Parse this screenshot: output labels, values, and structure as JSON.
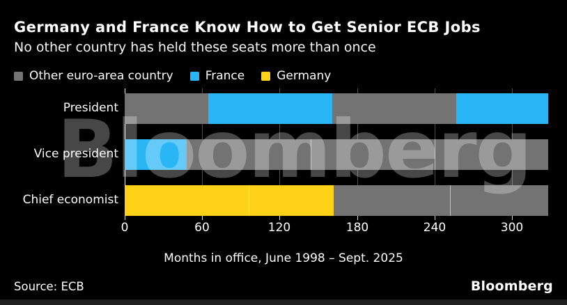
{
  "header": {
    "title": "Germany and France Know How to Get Senior ECB Jobs",
    "subtitle": "No other country has held these seats more than once"
  },
  "legend": {
    "items": [
      {
        "label": "Other euro-area country",
        "group": "Other euro-area country"
      },
      {
        "label": "France",
        "group": "France"
      },
      {
        "label": "Germany",
        "group": "Germany"
      }
    ]
  },
  "chart_data": {
    "type": "bar",
    "orientation": "horizontal",
    "stacked": true,
    "title": "Germany and France Know How to Get Senior ECB Jobs",
    "subtitle": "No other country has held these seats more than once",
    "xlabel": "Months in office, June 1998 – Sept. 2025",
    "unit": "months",
    "xlim": [
      0,
      328
    ],
    "xticks": [
      0,
      60,
      120,
      180,
      240,
      300
    ],
    "xtick_labels": [
      "0",
      "60",
      "120",
      "180",
      "240",
      "300"
    ],
    "grid": "vertical-ticks-between-bars",
    "legend_position": "top",
    "categories": [
      "President",
      "Vice president",
      "Chief economist"
    ],
    "group_colors": {
      "Other euro-area country": "#737373",
      "France": "#2ab6f5",
      "Germany": "#ffd117"
    },
    "rows": [
      {
        "label": "President",
        "segments": [
          {
            "group": "Other euro-area country",
            "months": 65
          },
          {
            "group": "France",
            "months": 96
          },
          {
            "group": "Other euro-area country",
            "months": 96
          },
          {
            "group": "France",
            "months": 71
          }
        ]
      },
      {
        "label": "Vice president",
        "segments": [
          {
            "group": "France",
            "months": 48
          },
          {
            "group": "Other euro-area country",
            "months": 96
          },
          {
            "group": "Other euro-area country",
            "months": 96
          },
          {
            "group": "Other euro-area country",
            "months": 88
          }
        ]
      },
      {
        "label": "Chief economist",
        "segments": [
          {
            "group": "Germany",
            "months": 96
          },
          {
            "group": "Germany",
            "months": 66
          },
          {
            "group": "Other euro-area country",
            "months": 90
          },
          {
            "group": "Other euro-area country",
            "months": 76
          }
        ]
      }
    ]
  },
  "caption": "Months in office, June 1998 – Sept. 2025",
  "watermark": "Bloomberg",
  "footer": {
    "source": "Source: ECB",
    "logo": "Bloomberg"
  },
  "colors": {
    "background": "#000000",
    "text": "#ffffff",
    "bar_gray": "#737373",
    "france_blue": "#2ab6f5",
    "germany_yellow": "#ffd117"
  }
}
